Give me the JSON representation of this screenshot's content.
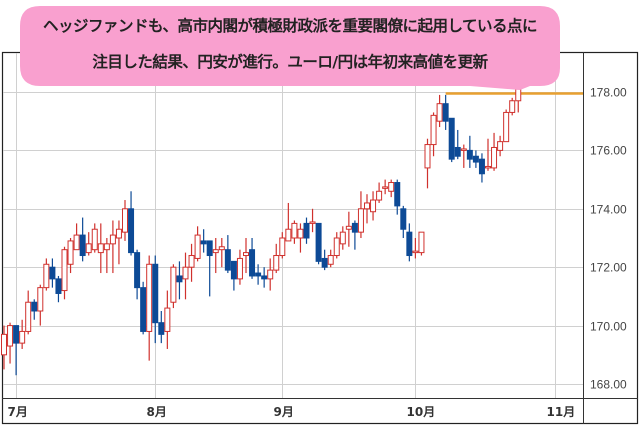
{
  "callout": {
    "line1": "ヘッジファンドも、高市内閣が積極財政派を重要閣僚に起用している点に",
    "line2": "注目した結果、円安が進行。ユーロ/円は年初来高値を更新",
    "color": "#f9a0cf"
  },
  "chart_data": {
    "type": "candlestick",
    "ylim": [
      167.5,
      179.0
    ],
    "y_ticks": [
      "168.00",
      "170.00",
      "172.00",
      "174.00",
      "176.00",
      "178.00"
    ],
    "x_tick_labels": [
      "7月",
      "8月",
      "9月",
      "10月",
      "11月"
    ],
    "x_tick_candle_index": [
      2,
      25,
      46,
      68,
      91
    ],
    "grid": true,
    "up_color": "#d0312d",
    "down_color": "#0d4a96",
    "reference_line": {
      "value": 177.95,
      "color": "#e8a030",
      "from_candle_index": 73
    },
    "ohlc": [
      [
        169.0,
        170.0,
        168.5,
        169.7
      ],
      [
        169.3,
        170.1,
        168.7,
        170.0
      ],
      [
        170.0,
        170.0,
        168.3,
        169.4
      ],
      [
        169.4,
        170.2,
        169.2,
        169.8
      ],
      [
        169.8,
        171.2,
        169.7,
        170.8
      ],
      [
        170.8,
        170.9,
        170.2,
        170.5
      ],
      [
        170.5,
        171.4,
        170.0,
        171.3
      ],
      [
        171.3,
        172.3,
        171.2,
        172.1
      ],
      [
        172.0,
        172.3,
        171.3,
        171.6
      ],
      [
        171.6,
        171.7,
        170.8,
        171.1
      ],
      [
        171.2,
        172.7,
        170.9,
        172.6
      ],
      [
        172.1,
        173.0,
        171.8,
        172.9
      ],
      [
        172.6,
        173.5,
        172.6,
        173.1
      ],
      [
        173.1,
        173.7,
        172.2,
        172.4
      ],
      [
        172.5,
        173.2,
        172.4,
        172.8
      ],
      [
        172.6,
        173.5,
        172.5,
        173.3
      ],
      [
        172.5,
        173.5,
        171.8,
        172.8
      ],
      [
        172.6,
        173.0,
        171.8,
        172.8
      ],
      [
        172.8,
        173.6,
        171.8,
        173.1
      ],
      [
        173.0,
        173.6,
        172.1,
        173.3
      ],
      [
        173.2,
        174.3,
        172.9,
        174.0
      ],
      [
        174.0,
        174.6,
        172.4,
        172.5
      ],
      [
        172.5,
        172.6,
        170.9,
        171.3
      ],
      [
        171.3,
        171.5,
        169.7,
        169.8
      ],
      [
        169.8,
        172.4,
        168.8,
        172.1
      ],
      [
        172.1,
        172.4,
        169.4,
        170.1
      ],
      [
        170.1,
        170.5,
        169.4,
        169.7
      ],
      [
        169.8,
        171.2,
        169.2,
        170.6
      ],
      [
        170.8,
        172.1,
        170.6,
        172.0
      ],
      [
        171.7,
        172.2,
        170.9,
        171.5
      ],
      [
        171.6,
        172.5,
        170.9,
        172.0
      ],
      [
        172.0,
        172.8,
        171.5,
        172.4
      ],
      [
        172.3,
        173.4,
        172.2,
        173.1
      ],
      [
        172.9,
        173.3,
        172.5,
        172.8
      ],
      [
        172.9,
        172.9,
        171.0,
        172.4
      ],
      [
        172.5,
        173.0,
        171.8,
        172.6
      ],
      [
        172.6,
        173.0,
        172.0,
        172.7
      ],
      [
        172.6,
        173.1,
        171.8,
        171.9
      ],
      [
        172.2,
        172.2,
        171.2,
        171.6
      ],
      [
        171.6,
        172.6,
        171.4,
        172.3
      ],
      [
        172.4,
        173.0,
        171.8,
        172.5
      ],
      [
        172.6,
        173.0,
        171.6,
        171.7
      ],
      [
        171.8,
        172.1,
        171.4,
        171.7
      ],
      [
        171.7,
        172.0,
        171.3,
        171.6
      ],
      [
        171.6,
        172.3,
        171.2,
        171.9
      ],
      [
        171.9,
        172.8,
        171.8,
        172.4
      ],
      [
        172.4,
        173.2,
        172.3,
        173.0
      ],
      [
        172.9,
        174.2,
        172.9,
        173.3
      ],
      [
        173.0,
        173.6,
        172.8,
        173.5
      ],
      [
        173.0,
        173.5,
        172.5,
        173.3
      ],
      [
        173.5,
        173.7,
        172.8,
        173.0
      ],
      [
        173.5,
        174.0,
        173.2,
        173.55
      ],
      [
        173.5,
        173.5,
        172.1,
        172.2
      ],
      [
        172.3,
        172.6,
        171.9,
        172.0
      ],
      [
        172.1,
        172.6,
        172.0,
        172.4
      ],
      [
        172.4,
        173.2,
        172.3,
        173.0
      ],
      [
        172.8,
        173.4,
        172.6,
        173.2
      ],
      [
        173.3,
        173.9,
        172.7,
        173.4
      ],
      [
        173.5,
        173.6,
        172.6,
        173.2
      ],
      [
        173.2,
        174.6,
        173.0,
        174.0
      ],
      [
        174.0,
        174.5,
        173.5,
        174.2
      ],
      [
        173.9,
        174.6,
        173.6,
        174.3
      ],
      [
        174.3,
        174.9,
        174.2,
        174.6
      ],
      [
        174.7,
        175.0,
        174.5,
        174.75
      ],
      [
        174.6,
        175.0,
        174.4,
        174.9
      ],
      [
        174.9,
        175.0,
        173.8,
        174.1
      ],
      [
        174.0,
        174.1,
        173.0,
        173.3
      ],
      [
        173.2,
        173.5,
        172.2,
        172.4
      ],
      [
        172.5,
        173.0,
        172.3,
        172.55
      ],
      [
        172.5,
        173.2,
        172.4,
        173.2
      ],
      [
        175.4,
        176.4,
        174.7,
        176.2
      ],
      [
        176.2,
        177.3,
        175.8,
        177.2
      ],
      [
        177.0,
        177.9,
        176.8,
        177.6
      ],
      [
        177.6,
        177.9,
        176.7,
        177.0
      ],
      [
        177.1,
        177.0,
        175.6,
        175.7
      ],
      [
        176.1,
        176.7,
        175.7,
        175.8
      ],
      [
        176.0,
        176.2,
        175.4,
        176.05
      ],
      [
        176.0,
        176.5,
        175.4,
        175.7
      ],
      [
        175.8,
        176.0,
        175.4,
        175.6
      ],
      [
        175.7,
        175.9,
        174.9,
        175.2
      ],
      [
        175.4,
        176.4,
        175.3,
        175.45
      ],
      [
        175.4,
        176.6,
        175.3,
        176.1
      ],
      [
        176.0,
        176.5,
        175.8,
        176.3
      ],
      [
        176.3,
        177.4,
        176.3,
        177.3
      ],
      [
        177.3,
        177.8,
        177.2,
        177.7
      ],
      [
        177.7,
        178.1,
        177.3,
        178.1
      ]
    ]
  }
}
